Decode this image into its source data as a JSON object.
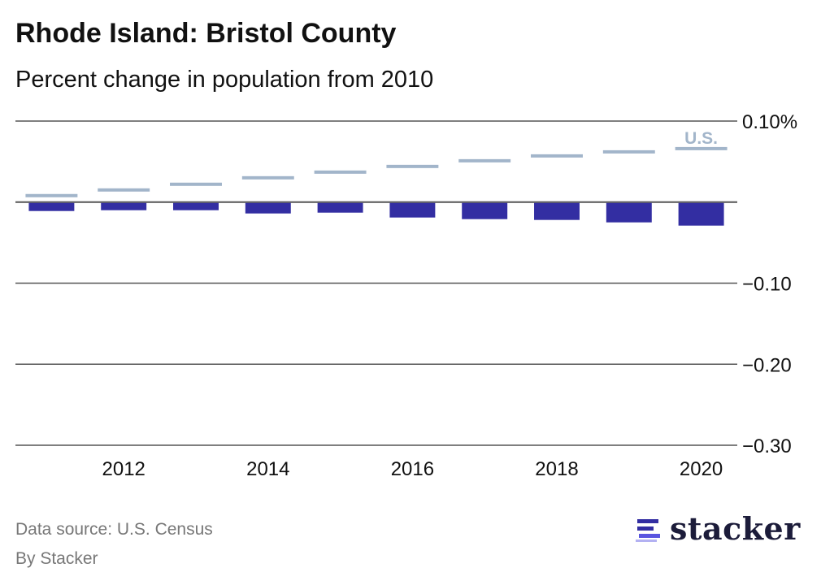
{
  "title": "Rhode Island: Bristol County",
  "subtitle": "Percent change in population from 2010",
  "footer": {
    "source": "Data source: U.S. Census",
    "by": "By Stacker"
  },
  "logo": {
    "text": "stacker",
    "icon": "stacker-stripes-icon"
  },
  "colors": {
    "county": "#332ea2",
    "us": "#a2b5ca",
    "grid": "#555555"
  },
  "chart_data": {
    "type": "bar",
    "title": "Rhode Island: Bristol County",
    "subtitle": "Percent change in population from 2010",
    "xlabel": "",
    "ylabel": "",
    "categories": [
      2011,
      2012,
      2013,
      2014,
      2015,
      2016,
      2017,
      2018,
      2019,
      2020
    ],
    "x_tick_labels": [
      "2012",
      "2014",
      "2016",
      "2018",
      "2020"
    ],
    "y_ticks": [
      0.1,
      0,
      -0.1,
      -0.2,
      -0.3
    ],
    "y_tick_labels": [
      "0.10%",
      "",
      "−0.10",
      "−0.20",
      "−0.30"
    ],
    "ylim": [
      -0.3,
      0.1
    ],
    "grid": true,
    "series": [
      {
        "name": "Bristol County",
        "type": "bar",
        "values": [
          -0.011,
          -0.01,
          -0.01,
          -0.014,
          -0.013,
          -0.019,
          -0.021,
          -0.022,
          -0.025,
          -0.029
        ]
      },
      {
        "name": "U.S.",
        "type": "marker",
        "label": "U.S.",
        "values": [
          0.008,
          0.015,
          0.022,
          0.03,
          0.037,
          0.044,
          0.051,
          0.057,
          0.062,
          0.066
        ]
      }
    ]
  }
}
